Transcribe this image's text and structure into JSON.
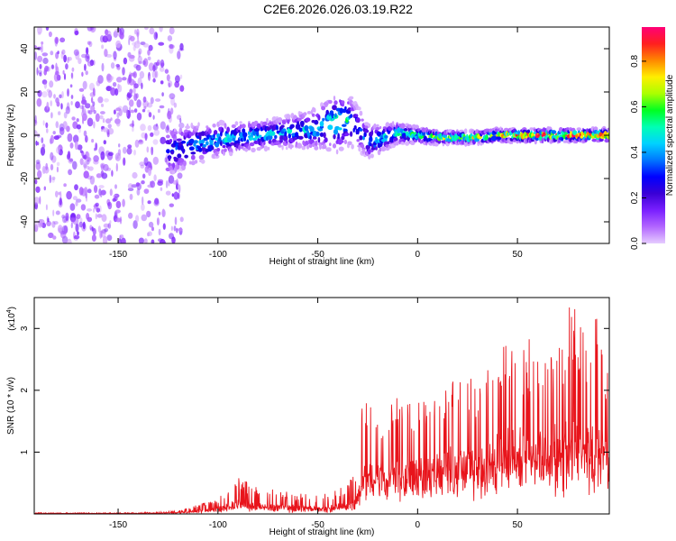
{
  "title": "C2E6.2026.026.03.19.R22",
  "colors": {
    "snr_line": "#e8141b",
    "axis": "#000000",
    "colormap": [
      "#e6ccff",
      "#b266ff",
      "#7a1fff",
      "#3a00d6",
      "#0000ff",
      "#0077ff",
      "#00d2ff",
      "#00ffb4",
      "#00ff22",
      "#aaff00",
      "#ffee00",
      "#ff8800",
      "#ff1f1f",
      "#ff0077"
    ]
  },
  "chart_data": [
    {
      "type": "heatmap",
      "name": "spectrogram",
      "xlabel": "Height of straight line (km)",
      "ylabel": "Frequency (Hz)",
      "xlim": [
        -192,
        96
      ],
      "ylim": [
        -50,
        50
      ],
      "xticks": [
        -150,
        -100,
        -50,
        0,
        50
      ],
      "xtick_labels": [
        "-150",
        "-100",
        "-50",
        "0",
        "50"
      ],
      "yticks": [
        -40,
        -20,
        0,
        20,
        40
      ],
      "ytick_labels": [
        "-40",
        "-20",
        "0",
        "20",
        "40"
      ],
      "colorbar": {
        "label": "Normalized spectral amplitude",
        "range": [
          0,
          0.95
        ],
        "ticks": [
          0,
          0.2,
          0.4,
          0.6,
          0.8
        ],
        "tick_labels": [
          "0.0",
          "0.2",
          "0.4",
          "0.6",
          "0.8"
        ]
      },
      "noise_region": {
        "x_range": [
          -192,
          -118
        ],
        "amplitude": 0.15
      },
      "ridge": {
        "x": [
          -125,
          -110,
          -100,
          -90,
          -80,
          -70,
          -60,
          -50,
          -45,
          -40,
          -35,
          -30,
          -25,
          -20,
          -10,
          0,
          10,
          20,
          30,
          40,
          50,
          60,
          70,
          80,
          96
        ],
        "center": [
          -8,
          -4,
          -2,
          -1,
          0,
          1,
          2,
          3,
          5,
          6,
          7,
          4,
          -3,
          -2,
          1,
          0,
          -1,
          -1,
          -1,
          0,
          0,
          0,
          0,
          0,
          0
        ],
        "halfwidth": [
          12,
          9,
          8,
          7,
          7,
          7,
          8,
          10,
          12,
          14,
          12,
          10,
          8,
          7,
          5,
          4,
          3,
          3,
          3,
          3,
          3,
          3,
          3,
          3,
          3
        ],
        "peak": [
          0.3,
          0.4,
          0.45,
          0.45,
          0.45,
          0.42,
          0.45,
          0.45,
          0.5,
          0.55,
          0.5,
          0.35,
          0.4,
          0.45,
          0.5,
          0.55,
          0.65,
          0.68,
          0.7,
          0.75,
          0.85,
          0.9,
          0.9,
          0.9,
          0.9
        ]
      }
    },
    {
      "type": "line",
      "name": "snr",
      "xlabel": "Height of straight line (km)",
      "ylabel": "SNR (10 * v/v)",
      "scale_label": "(x10",
      "scale_exponent": "4",
      "xlim": [
        -192,
        96
      ],
      "ylim": [
        0,
        3.5
      ],
      "xticks": [
        -150,
        -100,
        -50,
        0,
        50
      ],
      "xtick_labels": [
        "-150",
        "-100",
        "-50",
        "0",
        "50"
      ],
      "yticks": [
        1,
        2,
        3
      ],
      "ytick_labels": [
        "1",
        "2",
        "3"
      ],
      "envelope": {
        "x": [
          -192,
          -140,
          -120,
          -110,
          -100,
          -90,
          -80,
          -70,
          -60,
          -50,
          -40,
          -35,
          -30,
          -27,
          -20,
          -10,
          0,
          10,
          20,
          30,
          40,
          50,
          60,
          70,
          77,
          85,
          90,
          96
        ],
        "baseline": [
          0.01,
          0.01,
          0.02,
          0.04,
          0.06,
          0.1,
          0.08,
          0.07,
          0.06,
          0.05,
          0.06,
          0.1,
          0.2,
          0.4,
          0.5,
          0.55,
          0.6,
          0.6,
          0.6,
          0.65,
          0.7,
          0.75,
          0.8,
          0.85,
          0.9,
          0.9,
          0.9,
          0.9
        ],
        "peak": [
          0.02,
          0.02,
          0.05,
          0.15,
          0.25,
          0.6,
          0.45,
          0.4,
          0.35,
          0.3,
          0.4,
          0.5,
          0.8,
          2.1,
          1.5,
          1.9,
          1.8,
          2.0,
          2.3,
          2.2,
          2.7,
          2.8,
          2.9,
          2.8,
          3.5,
          3.0,
          3.2,
          2.2
        ]
      }
    }
  ]
}
